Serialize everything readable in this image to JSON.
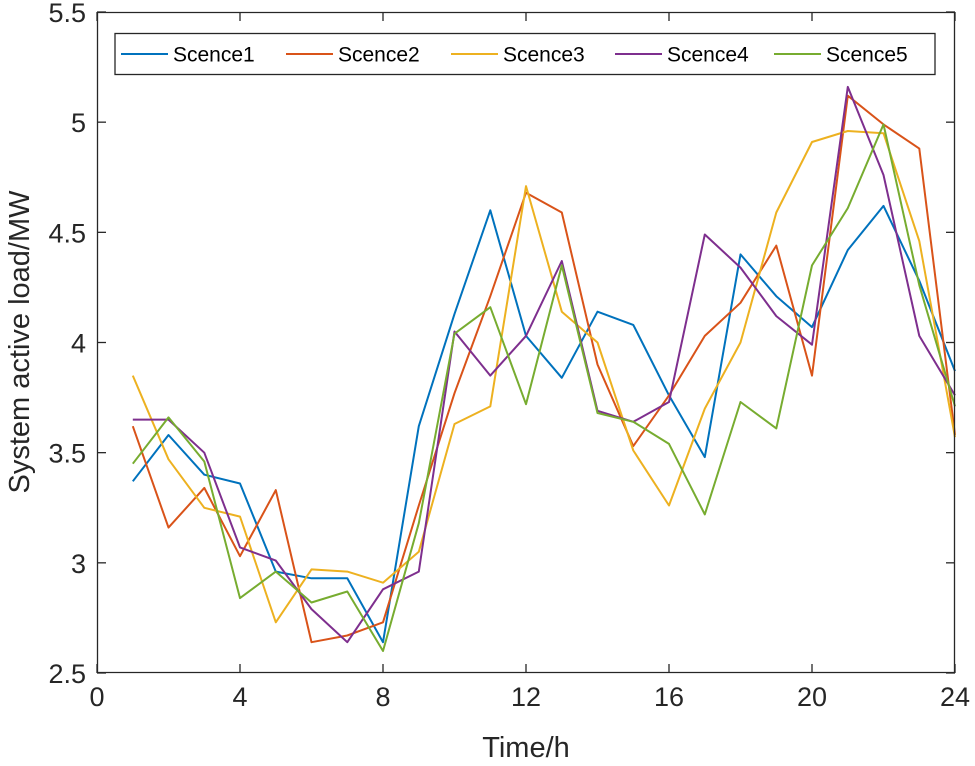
{
  "chart_data": {
    "type": "line",
    "title": "",
    "xlabel": "Time/h",
    "ylabel": "System active load/MW",
    "xlim": [
      0,
      24
    ],
    "ylim": [
      2.5,
      5.5
    ],
    "xticks": [
      0,
      4,
      8,
      12,
      16,
      20,
      24
    ],
    "yticks": [
      2.5,
      3,
      3.5,
      4,
      4.5,
      5,
      5.5
    ],
    "xtick_labels": [
      "0",
      "4",
      "8",
      "12",
      "16",
      "20",
      "24"
    ],
    "ytick_labels": [
      "2.5",
      "3",
      "3.5",
      "4",
      "4.5",
      "5",
      "5.5"
    ],
    "grid": false,
    "legend_position": "top",
    "x": [
      1,
      2,
      3,
      4,
      5,
      6,
      7,
      8,
      9,
      10,
      11,
      12,
      13,
      14,
      15,
      16,
      17,
      18,
      19,
      20,
      21,
      22,
      23,
      24
    ],
    "series": [
      {
        "name": "Scence1",
        "color": "#0072BD",
        "values": [
          3.37,
          3.58,
          3.4,
          3.36,
          2.96,
          2.93,
          2.93,
          2.64,
          3.62,
          4.13,
          4.6,
          4.03,
          3.84,
          4.14,
          4.08,
          3.76,
          3.48,
          4.4,
          4.21,
          4.07,
          4.42,
          4.62,
          4.28,
          3.87
        ]
      },
      {
        "name": "Scence2",
        "color": "#D95319",
        "values": [
          3.62,
          3.16,
          3.34,
          3.03,
          3.33,
          2.64,
          2.67,
          2.73,
          3.26,
          3.77,
          4.21,
          4.68,
          4.59,
          3.9,
          3.53,
          3.76,
          4.03,
          4.18,
          4.44,
          3.85,
          5.12,
          4.99,
          4.88,
          3.58
        ]
      },
      {
        "name": "Scence3",
        "color": "#EDB120",
        "values": [
          3.85,
          3.47,
          3.25,
          3.21,
          2.73,
          2.97,
          2.96,
          2.91,
          3.05,
          3.63,
          3.71,
          4.71,
          4.14,
          4.0,
          3.51,
          3.26,
          3.7,
          4.0,
          4.59,
          4.91,
          4.96,
          4.95,
          4.46,
          3.57
        ]
      },
      {
        "name": "Scence4",
        "color": "#7E2F8E",
        "values": [
          3.65,
          3.65,
          3.5,
          3.07,
          3.01,
          2.79,
          2.64,
          2.88,
          2.96,
          4.05,
          3.85,
          4.03,
          4.37,
          3.69,
          3.64,
          3.73,
          4.49,
          4.34,
          4.12,
          3.99,
          5.16,
          4.76,
          4.03,
          3.76
        ]
      },
      {
        "name": "Scence5",
        "color": "#77AC30",
        "values": [
          3.45,
          3.66,
          3.46,
          2.84,
          2.96,
          2.82,
          2.87,
          2.6,
          3.18,
          4.04,
          4.16,
          3.72,
          4.35,
          3.68,
          3.64,
          3.54,
          3.22,
          3.73,
          3.61,
          4.35,
          4.61,
          4.99,
          4.26,
          3.71
        ]
      }
    ]
  }
}
